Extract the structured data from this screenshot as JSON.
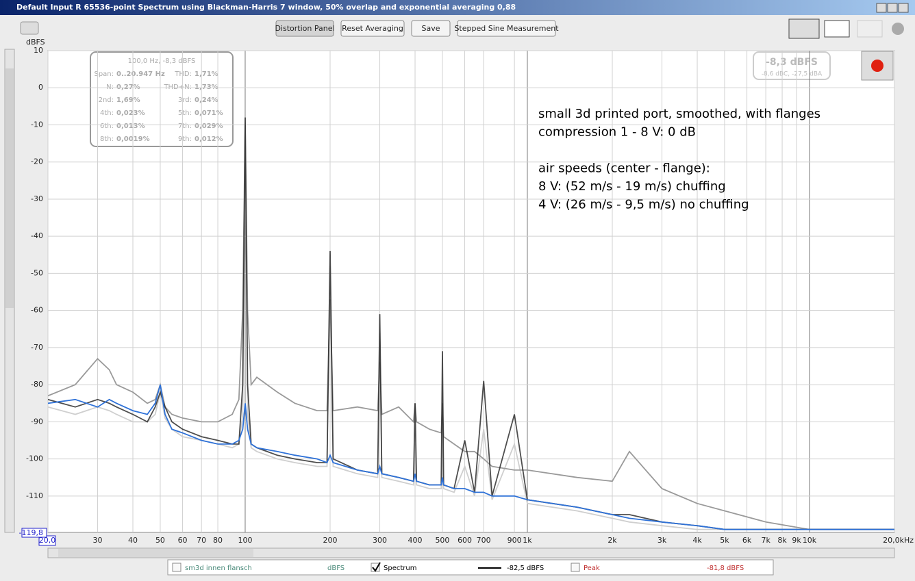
{
  "window": {
    "title": "Default Input R 65536-point Spectrum using Blackman-Harris 7 window, 50% overlap and exponential averaging 0,88"
  },
  "toolbar": {
    "buttons": [
      "Distortion Panel",
      "Reset Averaging",
      "Save",
      "Stepped Sine Measurement"
    ]
  },
  "info": {
    "header": "100,0 Hz, -8,3 dBFS",
    "rows": [
      [
        "Span:",
        "0..20.947 Hz",
        "THD:",
        "1,71%"
      ],
      [
        "N:",
        "0,27%",
        "THD+N:",
        "1,73%"
      ],
      [
        "2nd:",
        "1,69%",
        "3rd:",
        "0,24%"
      ],
      [
        "4th:",
        "0,023%",
        "5th:",
        "0,071%"
      ],
      [
        "6th:",
        "0,013%",
        "7th:",
        "0,029%"
      ],
      [
        "8th:",
        "0,0019%",
        "9th:",
        "0,012%"
      ]
    ]
  },
  "level": {
    "main": "-8,3 dBFS",
    "sub": "-8,6 dBC, -27,5 dBA"
  },
  "annotation": [
    "small 3d printed port, smoothed, with flanges",
    "compression 1 - 8 V: 0 dB",
    "",
    "air speeds (center - flange):",
    "8 V: (52 m/s - 19 m/s) chuffing",
    "4 V: (26 m/s - 9,5 m/s) no chuffing"
  ],
  "legend": [
    {
      "label": "sm3d innen flansch",
      "value": "dBFS"
    },
    {
      "label": "Spectrum",
      "value": "-82,5 dBFS"
    },
    {
      "label": "Peak",
      "value": "-81,8 dBFS"
    }
  ],
  "chart_data": {
    "type": "line",
    "y_label": "dBFS",
    "log_x": true,
    "grid": true,
    "xlim": [
      20,
      20000
    ],
    "ylim": [
      -119.8,
      10
    ],
    "xticks": [
      {
        "value": 20,
        "label": "20,0"
      },
      30,
      40,
      50,
      60,
      70,
      80,
      100,
      200,
      300,
      400,
      500,
      600,
      700,
      900,
      {
        "value": 1000,
        "label": "1k"
      },
      {
        "value": 2000,
        "label": "2k"
      },
      {
        "value": 3000,
        "label": "3k"
      },
      {
        "value": 4000,
        "label": "4k"
      },
      {
        "value": 5000,
        "label": "5k"
      },
      {
        "value": 6000,
        "label": "6k"
      },
      {
        "value": 7000,
        "label": "7k"
      },
      {
        "value": 8000,
        "label": "8k"
      },
      {
        "value": 9000,
        "label": "9k"
      },
      {
        "value": 10000,
        "label": "10k"
      },
      {
        "value": 20000,
        "label": "20,0kHz"
      }
    ],
    "yticks": [
      10,
      0,
      -10,
      -20,
      -30,
      -40,
      -50,
      -60,
      -70,
      -80,
      -90,
      -100,
      -110,
      {
        "value": -119.8,
        "label": "-119,8"
      }
    ],
    "x": [
      20,
      25,
      30,
      33,
      35,
      40,
      45,
      48,
      50,
      52,
      55,
      60,
      70,
      80,
      90,
      95,
      98,
      100,
      102,
      105,
      110,
      130,
      150,
      180,
      195,
      200,
      205,
      250,
      295,
      300,
      305,
      350,
      395,
      400,
      405,
      450,
      495,
      500,
      505,
      550,
      600,
      650,
      700,
      750,
      900,
      1000,
      1500,
      2000,
      2300,
      3000,
      4000,
      5000,
      7000,
      10000,
      20000
    ],
    "series": [
      {
        "color": "#cfcfcf",
        "values": [
          -86,
          -88,
          -86,
          -87,
          -88,
          -90,
          -90,
          -88,
          -82,
          -89,
          -92,
          -94,
          -95,
          -96,
          -97,
          -96,
          -88,
          -15,
          -88,
          -97,
          -98,
          -100,
          -101,
          -102,
          -102,
          -48,
          -102,
          -104,
          -105,
          -66,
          -105,
          -106,
          -107,
          -96,
          -107,
          -108,
          -108,
          -80,
          -108,
          -109,
          -102,
          -110,
          -92,
          -111,
          -96,
          -112,
          -114,
          -116,
          -117,
          -118,
          -119,
          -119,
          -119,
          -119,
          -119
        ]
      },
      {
        "color": "#9a9a9a",
        "values": [
          -83,
          -80,
          -73,
          -76,
          -80,
          -82,
          -85,
          -84,
          -80,
          -86,
          -88,
          -89,
          -90,
          -90,
          -88,
          -84,
          -60,
          -10,
          -60,
          -80,
          -78,
          -82,
          -85,
          -87,
          -87,
          -57,
          -87,
          -86,
          -87,
          -74,
          -88,
          -86,
          -90,
          -85,
          -90,
          -92,
          -93,
          -85,
          -94,
          -96,
          -98,
          -98,
          -100,
          -102,
          -103,
          -103,
          -105,
          -106,
          -98,
          -108,
          -112,
          -114,
          -117,
          -119,
          -119
        ]
      },
      {
        "color": "#222222",
        "values": [
          -84,
          -86,
          -84,
          -85,
          -86,
          -88,
          -90,
          -86,
          -82,
          -86,
          -90,
          -92,
          -94,
          -95,
          -96,
          -96,
          -80,
          -8,
          -80,
          -96,
          -97,
          -99,
          -100,
          -101,
          -101,
          -44,
          -100,
          -103,
          -104,
          -61,
          -104,
          -105,
          -106,
          -85,
          -106,
          -107,
          -107,
          -71,
          -107,
          -108,
          -95,
          -109,
          -79,
          -110,
          -88,
          -111,
          -113,
          -115,
          -115,
          -117,
          -118,
          -119,
          -119,
          -119,
          -119
        ]
      },
      {
        "color": "#2f72d8",
        "values": [
          -85,
          -84,
          -86,
          -84,
          -85,
          -87,
          -88,
          -85,
          -80,
          -88,
          -92,
          -93,
          -95,
          -96,
          -96,
          -95,
          -92,
          -85,
          -92,
          -96,
          -97,
          -98,
          -99,
          -100,
          -101,
          -99,
          -101,
          -103,
          -104,
          -102,
          -104,
          -105,
          -106,
          -104,
          -106,
          -107,
          -107,
          -105,
          -107,
          -108,
          -108,
          -109,
          -109,
          -110,
          -110,
          -111,
          -113,
          -115,
          -116,
          -117,
          -118,
          -119,
          -119,
          -119,
          -119
        ]
      }
    ]
  }
}
